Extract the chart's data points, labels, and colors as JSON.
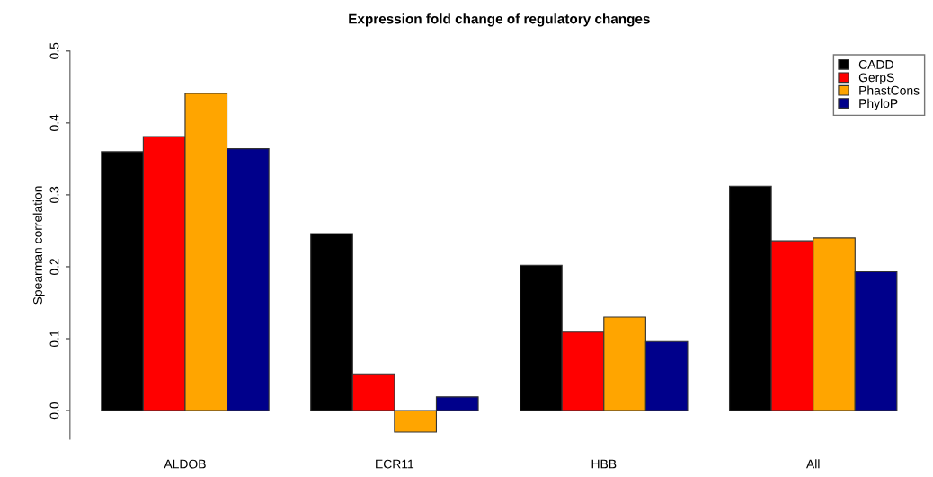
{
  "chart_data": {
    "type": "bar",
    "title": "Expression fold change of regulatory changes",
    "ylabel": "Spearman correlation",
    "categories": [
      "ALDOB",
      "ECR11",
      "HBB",
      "All"
    ],
    "series": [
      {
        "name": "CADD",
        "color": "#000000",
        "values": [
          0.36,
          0.246,
          0.202,
          0.312
        ]
      },
      {
        "name": "GerpS",
        "color": "#ff0000",
        "values": [
          0.381,
          0.051,
          0.109,
          0.236
        ]
      },
      {
        "name": "PhastCons",
        "color": "#ffa500",
        "values": [
          0.441,
          -0.03,
          0.13,
          0.24
        ]
      },
      {
        "name": "PhyloP",
        "color": "#00008b",
        "values": [
          0.364,
          0.019,
          0.096,
          0.193
        ]
      }
    ],
    "ylim": [
      -0.04,
      0.5
    ],
    "yticks": [
      {
        "value": 0,
        "label": "0.0"
      },
      {
        "value": 0.1,
        "label": "0.1"
      },
      {
        "value": 0.2,
        "label": "0.2"
      },
      {
        "value": 0.3,
        "label": "0.3"
      },
      {
        "value": 0.4,
        "label": "0.4"
      },
      {
        "value": 0.5,
        "label": "0.5"
      }
    ],
    "legend": "top right",
    "grid": false
  }
}
